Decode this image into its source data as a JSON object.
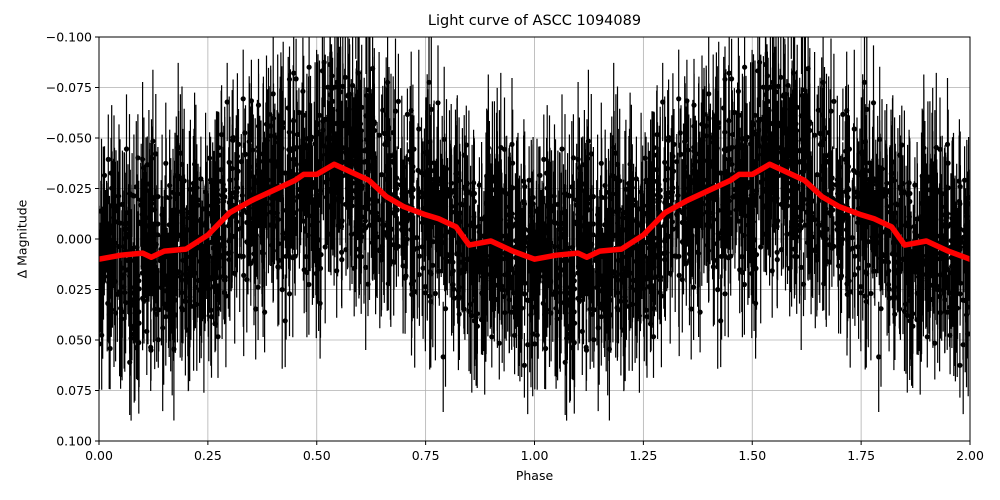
{
  "chart_data": {
    "type": "scatter",
    "title": "Light curve of ASCC 1094089",
    "xlabel": "Phase",
    "ylabel": "Δ Magnitude",
    "xlim": [
      0.0,
      2.0
    ],
    "ylim": [
      0.1,
      -0.1
    ],
    "y_inverted": true,
    "grid": true,
    "x_ticks": [
      "0.00",
      "0.25",
      "0.50",
      "0.75",
      "1.00",
      "1.25",
      "1.50",
      "1.75",
      "2.00"
    ],
    "y_ticks": [
      "−0.100",
      "−0.075",
      "−0.050",
      "−0.025",
      "0.000",
      "0.025",
      "0.050",
      "0.075",
      "0.100"
    ],
    "series": [
      {
        "name": "observations",
        "style": "black points with vertical error bars",
        "color": "#000000",
        "description": "Dense phase-folded photometry; scatter spans roughly −0.10 to +0.10 mag around the mean curve"
      },
      {
        "name": "binned mean",
        "style": "thick red line",
        "color": "#ff0000",
        "x": [
          0.0,
          0.05,
          0.1,
          0.12,
          0.15,
          0.2,
          0.25,
          0.3,
          0.35,
          0.4,
          0.45,
          0.47,
          0.5,
          0.54,
          0.57,
          0.62,
          0.66,
          0.7,
          0.75,
          0.78,
          0.82,
          0.85,
          0.9,
          0.95,
          1.0,
          1.05,
          1.1,
          1.12,
          1.15,
          1.2,
          1.25,
          1.3,
          1.35,
          1.4,
          1.45,
          1.47,
          1.5,
          1.54,
          1.57,
          1.62,
          1.66,
          1.7,
          1.75,
          1.78,
          1.82,
          1.85,
          1.9,
          1.95,
          2.0
        ],
        "y": [
          0.01,
          0.008,
          0.007,
          0.009,
          0.006,
          0.005,
          -0.002,
          -0.013,
          -0.019,
          -0.024,
          -0.029,
          -0.032,
          -0.032,
          -0.037,
          -0.034,
          -0.029,
          -0.021,
          -0.016,
          -0.012,
          -0.01,
          -0.006,
          0.003,
          0.001,
          0.006,
          0.01,
          0.008,
          0.007,
          0.009,
          0.006,
          0.005,
          -0.002,
          -0.013,
          -0.019,
          -0.024,
          -0.029,
          -0.032,
          -0.032,
          -0.037,
          -0.034,
          -0.029,
          -0.021,
          -0.016,
          -0.012,
          -0.01,
          -0.006,
          0.003,
          0.001,
          0.006,
          0.01
        ]
      }
    ]
  }
}
